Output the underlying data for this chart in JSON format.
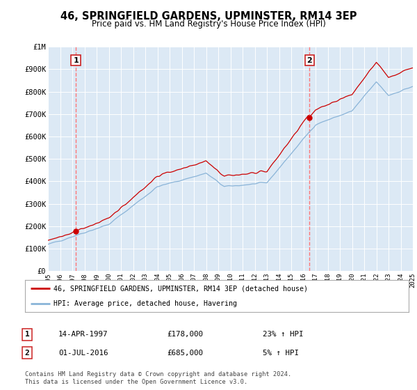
{
  "title": "46, SPRINGFIELD GARDENS, UPMINSTER, RM14 3EP",
  "subtitle": "Price paid vs. HM Land Registry's House Price Index (HPI)",
  "background_color": "#dce9f5",
  "plot_bg_color": "#dce9f5",
  "sale1_date": 1997.29,
  "sale1_price": 178000,
  "sale1_label": "1",
  "sale2_date": 2016.5,
  "sale2_price": 685000,
  "sale2_label": "2",
  "hpi_line_color": "#8ab4d8",
  "price_line_color": "#cc0000",
  "vline_color": "#ff7777",
  "hpi_x": [
    1995.0,
    1995.083,
    1995.167,
    1995.25,
    1995.333,
    1995.417,
    1995.5,
    1995.583,
    1995.667,
    1995.75,
    1995.833,
    1995.917,
    1996.0,
    1996.083,
    1996.167,
    1996.25,
    1996.333,
    1996.417,
    1996.5,
    1996.583,
    1996.667,
    1996.75,
    1996.833,
    1996.917,
    1997.0,
    1997.083,
    1997.167,
    1997.25,
    1997.333,
    1997.417,
    1997.5,
    1997.583,
    1997.667,
    1997.75,
    1997.833,
    1997.917,
    1998.0,
    1998.083,
    1998.167,
    1998.25,
    1998.333,
    1998.417,
    1998.5,
    1998.583,
    1998.667,
    1998.75,
    1998.833,
    1998.917,
    1999.0,
    1999.083,
    1999.167,
    1999.25,
    1999.333,
    1999.417,
    1999.5,
    1999.583,
    1999.667,
    1999.75,
    1999.833,
    1999.917,
    2000.0,
    2000.083,
    2000.167,
    2000.25,
    2000.333,
    2000.417,
    2000.5,
    2000.583,
    2000.667,
    2000.75,
    2000.833,
    2000.917,
    2001.0,
    2001.083,
    2001.167,
    2001.25,
    2001.333,
    2001.417,
    2001.5,
    2001.583,
    2001.667,
    2001.75,
    2001.833,
    2001.917,
    2002.0,
    2002.083,
    2002.167,
    2002.25,
    2002.333,
    2002.417,
    2002.5,
    2002.583,
    2002.667,
    2002.75,
    2002.833,
    2002.917,
    2003.0,
    2003.083,
    2003.167,
    2003.25,
    2003.333,
    2003.417,
    2003.5,
    2003.583,
    2003.667,
    2003.75,
    2003.833,
    2003.917,
    2004.0,
    2004.083,
    2004.167,
    2004.25,
    2004.333,
    2004.417,
    2004.5,
    2004.583,
    2004.667,
    2004.75,
    2004.833,
    2004.917,
    2005.0,
    2005.083,
    2005.167,
    2005.25,
    2005.333,
    2005.417,
    2005.5,
    2005.583,
    2005.667,
    2005.75,
    2005.833,
    2005.917,
    2006.0,
    2006.083,
    2006.167,
    2006.25,
    2006.333,
    2006.417,
    2006.5,
    2006.583,
    2006.667,
    2006.75,
    2006.833,
    2006.917,
    2007.0,
    2007.083,
    2007.167,
    2007.25,
    2007.333,
    2007.417,
    2007.5,
    2007.583,
    2007.667,
    2007.75,
    2007.833,
    2007.917,
    2008.0,
    2008.083,
    2008.167,
    2008.25,
    2008.333,
    2008.417,
    2008.5,
    2008.583,
    2008.667,
    2008.75,
    2008.833,
    2008.917,
    2009.0,
    2009.083,
    2009.167,
    2009.25,
    2009.333,
    2009.417,
    2009.5,
    2009.583,
    2009.667,
    2009.75,
    2009.833,
    2009.917,
    2010.0,
    2010.083,
    2010.167,
    2010.25,
    2010.333,
    2010.417,
    2010.5,
    2010.583,
    2010.667,
    2010.75,
    2010.833,
    2010.917,
    2011.0,
    2011.083,
    2011.167,
    2011.25,
    2011.333,
    2011.417,
    2011.5,
    2011.583,
    2011.667,
    2011.75,
    2011.833,
    2011.917,
    2012.0,
    2012.083,
    2012.167,
    2012.25,
    2012.333,
    2012.417,
    2012.5,
    2012.583,
    2012.667,
    2012.75,
    2012.833,
    2012.917,
    2013.0,
    2013.083,
    2013.167,
    2013.25,
    2013.333,
    2013.417,
    2013.5,
    2013.583,
    2013.667,
    2013.75,
    2013.833,
    2013.917,
    2014.0,
    2014.083,
    2014.167,
    2014.25,
    2014.333,
    2014.417,
    2014.5,
    2014.583,
    2014.667,
    2014.75,
    2014.833,
    2014.917,
    2015.0,
    2015.083,
    2015.167,
    2015.25,
    2015.333,
    2015.417,
    2015.5,
    2015.583,
    2015.667,
    2015.75,
    2015.833,
    2015.917,
    2016.0,
    2016.083,
    2016.167,
    2016.25,
    2016.333,
    2016.417,
    2016.5,
    2016.583,
    2016.667,
    2016.75,
    2016.833,
    2016.917,
    2017.0,
    2017.083,
    2017.167,
    2017.25,
    2017.333,
    2017.417,
    2017.5,
    2017.583,
    2017.667,
    2017.75,
    2017.833,
    2017.917,
    2018.0,
    2018.083,
    2018.167,
    2018.25,
    2018.333,
    2018.417,
    2018.5,
    2018.583,
    2018.667,
    2018.75,
    2018.833,
    2018.917,
    2019.0,
    2019.083,
    2019.167,
    2019.25,
    2019.333,
    2019.417,
    2019.5,
    2019.583,
    2019.667,
    2019.75,
    2019.833,
    2019.917,
    2020.0,
    2020.083,
    2020.167,
    2020.25,
    2020.333,
    2020.417,
    2020.5,
    2020.583,
    2020.667,
    2020.75,
    2020.833,
    2020.917,
    2021.0,
    2021.083,
    2021.167,
    2021.25,
    2021.333,
    2021.417,
    2021.5,
    2021.583,
    2021.667,
    2021.75,
    2021.833,
    2021.917,
    2022.0,
    2022.083,
    2022.167,
    2022.25,
    2022.333,
    2022.417,
    2022.5,
    2022.583,
    2022.667,
    2022.75,
    2022.833,
    2022.917,
    2023.0,
    2023.083,
    2023.167,
    2023.25,
    2023.333,
    2023.417,
    2023.5,
    2023.583,
    2023.667,
    2023.75,
    2023.833,
    2023.917,
    2024.0,
    2024.083,
    2024.167,
    2024.25,
    2024.333,
    2024.417,
    2024.5,
    2024.583,
    2024.667,
    2024.75,
    2024.833,
    2024.917,
    2025.0
  ],
  "price_x": [
    1995.0,
    1995.083,
    1995.167,
    1995.25,
    1995.333,
    1995.417,
    1995.5,
    1995.583,
    1995.667,
    1995.75,
    1995.833,
    1995.917,
    1996.0,
    1996.083,
    1996.167,
    1996.25,
    1996.333,
    1996.417,
    1996.5,
    1996.583,
    1996.667,
    1996.75,
    1996.833,
    1996.917,
    1997.0,
    1997.083,
    1997.167,
    1997.25,
    1997.333,
    1997.417,
    1997.5,
    1997.583,
    1997.667,
    1997.75,
    1997.833,
    1997.917,
    1998.0,
    1998.083,
    1998.167,
    1998.25,
    1998.333,
    1998.417,
    1998.5,
    1998.583,
    1998.667,
    1998.75,
    1998.833,
    1998.917,
    1999.0,
    1999.083,
    1999.167,
    1999.25,
    1999.333,
    1999.417,
    1999.5,
    1999.583,
    1999.667,
    1999.75,
    1999.833,
    1999.917,
    2000.0,
    2000.083,
    2000.167,
    2000.25,
    2000.333,
    2000.417,
    2000.5,
    2000.583,
    2000.667,
    2000.75,
    2000.833,
    2000.917,
    2001.0,
    2001.083,
    2001.167,
    2001.25,
    2001.333,
    2001.417,
    2001.5,
    2001.583,
    2001.667,
    2001.75,
    2001.833,
    2001.917,
    2002.0,
    2002.083,
    2002.167,
    2002.25,
    2002.333,
    2002.417,
    2002.5,
    2002.583,
    2002.667,
    2002.75,
    2002.833,
    2002.917,
    2003.0,
    2003.083,
    2003.167,
    2003.25,
    2003.333,
    2003.417,
    2003.5,
    2003.583,
    2003.667,
    2003.75,
    2003.833,
    2003.917,
    2004.0,
    2004.083,
    2004.167,
    2004.25,
    2004.333,
    2004.417,
    2004.5,
    2004.583,
    2004.667,
    2004.75,
    2004.833,
    2004.917,
    2005.0,
    2005.083,
    2005.167,
    2005.25,
    2005.333,
    2005.417,
    2005.5,
    2005.583,
    2005.667,
    2005.75,
    2005.833,
    2005.917,
    2006.0,
    2006.083,
    2006.167,
    2006.25,
    2006.333,
    2006.417,
    2006.5,
    2006.583,
    2006.667,
    2006.75,
    2006.833,
    2006.917,
    2007.0,
    2007.083,
    2007.167,
    2007.25,
    2007.333,
    2007.417,
    2007.5,
    2007.583,
    2007.667,
    2007.75,
    2007.833,
    2007.917,
    2008.0,
    2008.083,
    2008.167,
    2008.25,
    2008.333,
    2008.417,
    2008.5,
    2008.583,
    2008.667,
    2008.75,
    2008.833,
    2008.917,
    2009.0,
    2009.083,
    2009.167,
    2009.25,
    2009.333,
    2009.417,
    2009.5,
    2009.583,
    2009.667,
    2009.75,
    2009.833,
    2009.917,
    2010.0,
    2010.083,
    2010.167,
    2010.25,
    2010.333,
    2010.417,
    2010.5,
    2010.583,
    2010.667,
    2010.75,
    2010.833,
    2010.917,
    2011.0,
    2011.083,
    2011.167,
    2011.25,
    2011.333,
    2011.417,
    2011.5,
    2011.583,
    2011.667,
    2011.75,
    2011.833,
    2011.917,
    2012.0,
    2012.083,
    2012.167,
    2012.25,
    2012.333,
    2012.417,
    2012.5,
    2012.583,
    2012.667,
    2012.75,
    2012.833,
    2012.917,
    2013.0,
    2013.083,
    2013.167,
    2013.25,
    2013.333,
    2013.417,
    2013.5,
    2013.583,
    2013.667,
    2013.75,
    2013.833,
    2013.917,
    2014.0,
    2014.083,
    2014.167,
    2014.25,
    2014.333,
    2014.417,
    2014.5,
    2014.583,
    2014.667,
    2014.75,
    2014.833,
    2014.917,
    2015.0,
    2015.083,
    2015.167,
    2015.25,
    2015.333,
    2015.417,
    2015.5,
    2015.583,
    2015.667,
    2015.75,
    2015.833,
    2015.917,
    2016.0,
    2016.083,
    2016.167,
    2016.25,
    2016.333,
    2016.417,
    2016.5,
    2016.583,
    2016.667,
    2016.75,
    2016.833,
    2016.917,
    2017.0,
    2017.083,
    2017.167,
    2017.25,
    2017.333,
    2017.417,
    2017.5,
    2017.583,
    2017.667,
    2017.75,
    2017.833,
    2017.917,
    2018.0,
    2018.083,
    2018.167,
    2018.25,
    2018.333,
    2018.417,
    2018.5,
    2018.583,
    2018.667,
    2018.75,
    2018.833,
    2018.917,
    2019.0,
    2019.083,
    2019.167,
    2019.25,
    2019.333,
    2019.417,
    2019.5,
    2019.583,
    2019.667,
    2019.75,
    2019.833,
    2019.917,
    2020.0,
    2020.083,
    2020.167,
    2020.25,
    2020.333,
    2020.417,
    2020.5,
    2020.583,
    2020.667,
    2020.75,
    2020.833,
    2020.917,
    2021.0,
    2021.083,
    2021.167,
    2021.25,
    2021.333,
    2021.417,
    2021.5,
    2021.583,
    2021.667,
    2021.75,
    2021.833,
    2021.917,
    2022.0,
    2022.083,
    2022.167,
    2022.25,
    2022.333,
    2022.417,
    2022.5,
    2022.583,
    2022.667,
    2022.75,
    2022.833,
    2022.917,
    2023.0,
    2023.083,
    2023.167,
    2023.25,
    2023.333,
    2023.417,
    2023.5,
    2023.583,
    2023.667,
    2023.75,
    2023.833,
    2023.917,
    2024.0,
    2024.083,
    2024.167,
    2024.25,
    2024.333,
    2024.417,
    2024.5,
    2024.583,
    2024.667,
    2024.75,
    2024.833,
    2024.917,
    2025.0
  ],
  "ylim": [
    0,
    1000000
  ],
  "xlim": [
    1995,
    2025
  ],
  "yticks": [
    0,
    100000,
    200000,
    300000,
    400000,
    500000,
    600000,
    700000,
    800000,
    900000,
    1000000
  ],
  "ytick_labels": [
    "£0",
    "£100K",
    "£200K",
    "£300K",
    "£400K",
    "£500K",
    "£600K",
    "£700K",
    "£800K",
    "£900K",
    "£1M"
  ],
  "xtick_years": [
    1995,
    1996,
    1997,
    1998,
    1999,
    2000,
    2001,
    2002,
    2003,
    2004,
    2005,
    2006,
    2007,
    2008,
    2009,
    2010,
    2011,
    2012,
    2013,
    2014,
    2015,
    2016,
    2017,
    2018,
    2019,
    2020,
    2021,
    2022,
    2023,
    2024,
    2025
  ],
  "legend_price_label": "46, SPRINGFIELD GARDENS, UPMINSTER, RM14 3EP (detached house)",
  "legend_hpi_label": "HPI: Average price, detached house, Havering",
  "annot1_date": "14-APR-1997",
  "annot1_price": "£178,000",
  "annot1_hpi": "23% ↑ HPI",
  "annot2_date": "01-JUL-2016",
  "annot2_price": "£685,000",
  "annot2_hpi": "5% ↑ HPI",
  "footer": "Contains HM Land Registry data © Crown copyright and database right 2024.\nThis data is licensed under the Open Government Licence v3.0."
}
